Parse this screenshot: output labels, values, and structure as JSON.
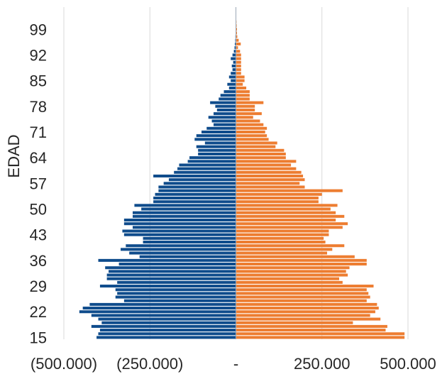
{
  "chart_data": {
    "type": "bar",
    "orientation": "horizontal",
    "subtype": "population-pyramid",
    "title": "",
    "ylabel": "EDAD",
    "xlabel": "",
    "x_ticks": [
      -500000,
      -250000,
      0,
      250000,
      500000
    ],
    "x_tick_labels": [
      "(500.000)",
      "(250.000)",
      "-",
      "250.000",
      "500.000"
    ],
    "xlim": [
      -500000,
      500000
    ],
    "y_tick_labels": [
      "15",
      "22",
      "29",
      "36",
      "43",
      "50",
      "57",
      "64",
      "71",
      "78",
      "85",
      "92",
      "99"
    ],
    "ages": [
      15,
      16,
      17,
      18,
      19,
      20,
      21,
      22,
      23,
      24,
      25,
      26,
      27,
      28,
      29,
      30,
      31,
      32,
      33,
      34,
      35,
      36,
      37,
      38,
      39,
      40,
      41,
      42,
      43,
      44,
      45,
      46,
      47,
      48,
      49,
      50,
      51,
      52,
      53,
      54,
      55,
      56,
      57,
      58,
      59,
      60,
      61,
      62,
      63,
      64,
      65,
      66,
      67,
      68,
      69,
      70,
      71,
      72,
      73,
      74,
      75,
      76,
      77,
      78,
      79,
      80,
      81,
      82,
      83,
      84,
      85,
      86,
      87,
      88,
      89,
      90,
      91,
      92,
      93,
      94,
      95,
      96,
      97,
      98,
      99,
      100,
      101,
      102,
      103
    ],
    "grid": "vertical",
    "legend": "none",
    "colors": {
      "negative_series": "#0f4c8c",
      "positive_series": "#ed7d31",
      "gridline": "#d9d9d9"
    },
    "series": [
      {
        "side": "left",
        "values": [
          -405000,
          -400000,
          -395000,
          -420000,
          -390000,
          -400000,
          -420000,
          -455000,
          -445000,
          -425000,
          -325000,
          -350000,
          -345000,
          -350000,
          -395000,
          -345000,
          -375000,
          -375000,
          -370000,
          -380000,
          -340000,
          -400000,
          -280000,
          -310000,
          -335000,
          -320000,
          -270000,
          -270000,
          -325000,
          -330000,
          -300000,
          -325000,
          -325000,
          -300000,
          -300000,
          -275000,
          -295000,
          -240000,
          -240000,
          -235000,
          -225000,
          -225000,
          -210000,
          -195000,
          -240000,
          -180000,
          -170000,
          -165000,
          -140000,
          -135000,
          -110000,
          -110000,
          -115000,
          -90000,
          -120000,
          -115000,
          -100000,
          -85000,
          -65000,
          -70000,
          -80000,
          -65000,
          -55000,
          -60000,
          -75000,
          -50000,
          -45000,
          -35000,
          -20000,
          -25000,
          -15000,
          -20000,
          -15000,
          -10000,
          -12000,
          -8000,
          -15000,
          -10000,
          -6000,
          -4000,
          -3000,
          -2000,
          -1500,
          -1000,
          -800,
          -500,
          -300,
          -200,
          -100
        ]
      },
      {
        "side": "right",
        "values": [
          490000,
          490000,
          435000,
          440000,
          340000,
          420000,
          390000,
          405000,
          415000,
          410000,
          380000,
          390000,
          385000,
          380000,
          400000,
          310000,
          300000,
          325000,
          320000,
          330000,
          380000,
          380000,
          345000,
          265000,
          280000,
          315000,
          260000,
          255000,
          270000,
          270000,
          310000,
          325000,
          290000,
          315000,
          290000,
          275000,
          295000,
          240000,
          240000,
          250000,
          310000,
          200000,
          185000,
          200000,
          195000,
          190000,
          175000,
          160000,
          175000,
          145000,
          145000,
          140000,
          115000,
          120000,
          95000,
          90000,
          85000,
          90000,
          80000,
          70000,
          50000,
          75000,
          55000,
          55000,
          80000,
          40000,
          40000,
          40000,
          30000,
          20000,
          25000,
          25000,
          15000,
          15000,
          15000,
          15000,
          15000,
          15000,
          12000,
          6000,
          14000,
          8000,
          4000,
          3000,
          3000,
          2000,
          1500,
          1000,
          500
        ]
      }
    ]
  }
}
